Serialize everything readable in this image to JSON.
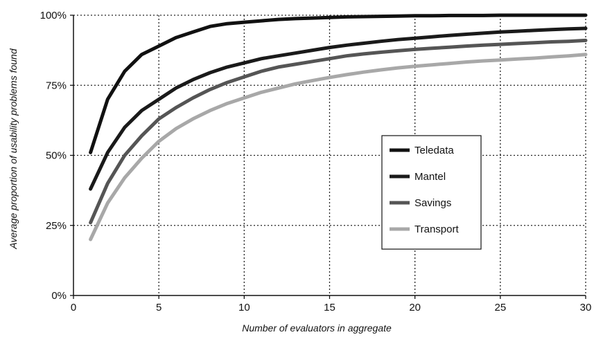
{
  "chart_data": {
    "type": "line",
    "xlabel": "Number of evaluators in aggregate",
    "ylabel": "Average proportion of usability problems found",
    "xlim": [
      0,
      30
    ],
    "ylim": [
      0,
      100
    ],
    "x_ticks": [
      {
        "value": 0,
        "label": "0"
      },
      {
        "value": 5,
        "label": "5"
      },
      {
        "value": 10,
        "label": "10"
      },
      {
        "value": 15,
        "label": "15"
      },
      {
        "value": 20,
        "label": "20"
      },
      {
        "value": 25,
        "label": "25"
      },
      {
        "value": 30,
        "label": "30"
      }
    ],
    "y_ticks": [
      {
        "value": 0,
        "label": "0%"
      },
      {
        "value": 25,
        "label": "25%"
      },
      {
        "value": 50,
        "label": "50%"
      },
      {
        "value": 75,
        "label": "75%"
      },
      {
        "value": 100,
        "label": "100%"
      }
    ],
    "grid": true,
    "legend_position": "center-right",
    "x": [
      1,
      2,
      3,
      4,
      5,
      6,
      7,
      8,
      9,
      10,
      11,
      12,
      13,
      14,
      15,
      16,
      17,
      18,
      19,
      20,
      21,
      22,
      23,
      24,
      25,
      26,
      27,
      28,
      29,
      30
    ],
    "series": [
      {
        "name": "Teledata",
        "color": "#111111",
        "values": [
          51,
          70,
          80,
          86,
          89,
          92,
          94,
          96,
          97,
          97.5,
          98,
          98.5,
          98.8,
          99,
          99.2,
          99.4,
          99.5,
          99.6,
          99.7,
          99.8,
          99.8,
          99.9,
          99.9,
          99.9,
          100,
          100,
          100,
          100,
          100,
          100
        ]
      },
      {
        "name": "Mantel",
        "color": "#1a1a1a",
        "values": [
          38,
          51,
          60,
          66,
          70,
          74,
          77,
          79.5,
          81.5,
          83,
          84.5,
          85.5,
          86.5,
          87.5,
          88.5,
          89.3,
          90,
          90.7,
          91.3,
          91.8,
          92.3,
          92.8,
          93.2,
          93.6,
          94,
          94.3,
          94.6,
          94.9,
          95.1,
          95.3
        ]
      },
      {
        "name": "Savings",
        "color": "#555555",
        "values": [
          26,
          40,
          50,
          57,
          63,
          67,
          70.5,
          73.5,
          76,
          78,
          80,
          81.5,
          82.5,
          83.5,
          84.5,
          85.5,
          86.2,
          86.8,
          87.3,
          87.8,
          88.2,
          88.6,
          89,
          89.3,
          89.6,
          89.9,
          90.2,
          90.5,
          90.7,
          91
        ]
      },
      {
        "name": "Transport",
        "color": "#a8a8a8",
        "values": [
          20,
          33,
          42,
          49,
          55,
          59.5,
          63,
          66,
          68.5,
          70.5,
          72.5,
          74,
          75.5,
          76.7,
          77.8,
          78.8,
          79.7,
          80.5,
          81.2,
          81.8,
          82.3,
          82.8,
          83.3,
          83.7,
          84,
          84.4,
          84.7,
          85.1,
          85.5,
          86
        ]
      }
    ]
  }
}
